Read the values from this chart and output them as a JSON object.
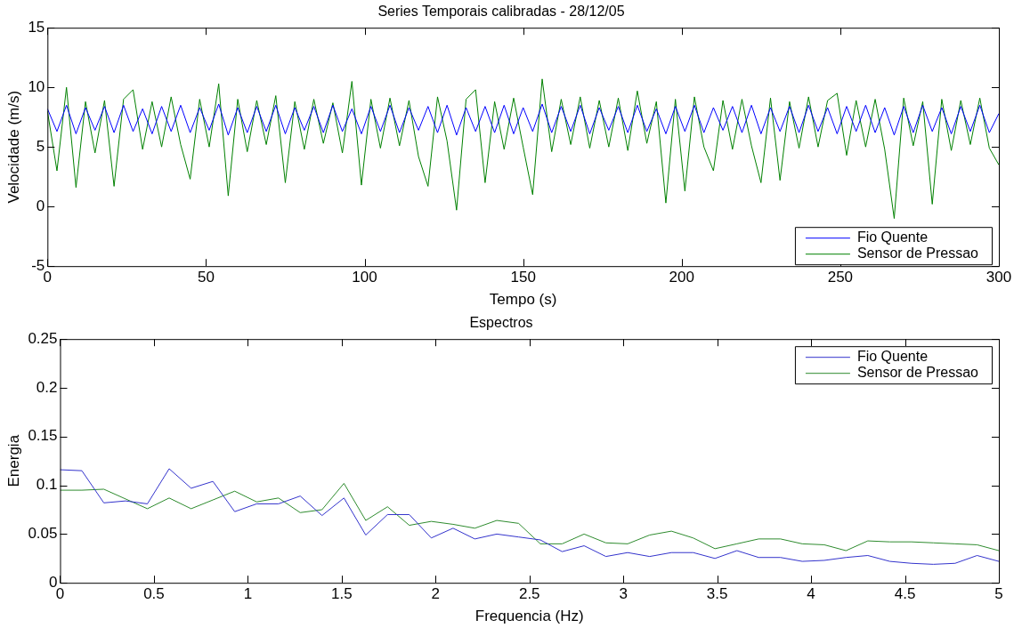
{
  "chart_data": [
    {
      "type": "line",
      "title": "Series Temporais calibradas - 28/12/05",
      "xlabel": "Tempo (s)",
      "ylabel": "Velocidade (m/s)",
      "x": [
        0,
        3,
        6,
        9,
        12,
        15,
        18,
        21,
        24,
        27,
        30,
        33,
        36,
        39,
        42,
        45,
        48,
        51,
        54,
        57,
        60,
        63,
        66,
        69,
        72,
        75,
        78,
        81,
        84,
        87,
        90,
        93,
        96,
        99,
        102,
        105,
        108,
        111,
        114,
        117,
        120,
        123,
        126,
        129,
        132,
        135,
        138,
        141,
        144,
        147,
        150,
        153,
        156,
        159,
        162,
        165,
        168,
        171,
        174,
        177,
        180,
        183,
        186,
        189,
        192,
        195,
        198,
        201,
        204,
        207,
        210,
        213,
        216,
        219,
        222,
        225,
        228,
        231,
        234,
        237,
        240,
        243,
        246,
        249,
        252,
        255,
        258,
        261,
        264,
        267,
        270,
        273,
        276,
        279,
        282,
        285,
        288,
        291,
        294,
        297,
        300
      ],
      "series": [
        {
          "name": "Fio Quente",
          "color": "#0000ff",
          "values": [
            8.2,
            6.3,
            8.5,
            6.1,
            8.3,
            6.4,
            8.4,
            6.2,
            8.5,
            6.3,
            8.2,
            6.1,
            8.4,
            6.3,
            8.5,
            6.2,
            8.3,
            6.4,
            8.6,
            6.0,
            8.3,
            6.2,
            8.4,
            6.3,
            8.5,
            6.1,
            8.3,
            6.4,
            8.4,
            6.2,
            8.5,
            6.3,
            8.2,
            6.1,
            8.4,
            6.3,
            8.5,
            6.2,
            8.3,
            6.4,
            8.4,
            6.2,
            8.5,
            6.0,
            8.3,
            6.3,
            8.4,
            6.2,
            8.5,
            6.1,
            8.3,
            6.3,
            8.6,
            6.2,
            8.4,
            6.3,
            8.5,
            6.1,
            8.3,
            6.4,
            8.4,
            6.2,
            8.5,
            6.3,
            8.2,
            6.1,
            8.4,
            6.3,
            8.5,
            6.2,
            8.3,
            6.4,
            8.4,
            6.2,
            8.5,
            6.1,
            8.3,
            6.3,
            8.4,
            6.2,
            8.5,
            6.3,
            8.3,
            6.1,
            8.4,
            6.3,
            8.5,
            6.2,
            8.3,
            6.0,
            8.4,
            6.2,
            8.5,
            6.3,
            8.3,
            6.1,
            8.4,
            6.3,
            8.5,
            6.2,
            7.8
          ]
        },
        {
          "name": "Sensor de Pressao",
          "color": "#008000",
          "values": [
            8.0,
            3.0,
            10.0,
            1.6,
            8.8,
            4.5,
            8.9,
            1.7,
            9.0,
            9.8,
            4.8,
            8.8,
            5.0,
            9.2,
            5.2,
            2.3,
            9.0,
            5.0,
            10.3,
            0.9,
            9.0,
            4.6,
            8.9,
            5.2,
            9.3,
            2.0,
            8.8,
            4.8,
            9.0,
            5.3,
            8.7,
            4.5,
            10.5,
            1.8,
            9.0,
            4.9,
            9.1,
            5.1,
            8.9,
            4.2,
            1.7,
            9.2,
            5.5,
            -0.3,
            9.0,
            9.8,
            2.0,
            8.8,
            4.8,
            9.1,
            5.0,
            1.0,
            10.7,
            4.6,
            9.0,
            5.2,
            9.2,
            4.9,
            8.9,
            5.0,
            9.1,
            4.7,
            9.7,
            5.3,
            8.8,
            0.3,
            9.0,
            1.3,
            9.2,
            5.0,
            3.0,
            8.9,
            4.8,
            9.0,
            5.1,
            2.0,
            9.1,
            2.2,
            8.8,
            4.9,
            9.2,
            5.0,
            8.9,
            9.5,
            4.3,
            8.9,
            5.0,
            9.0,
            4.8,
            -1.0,
            9.1,
            5.1,
            8.8,
            0.2,
            9.0,
            4.7,
            8.9,
            5.2,
            9.1,
            4.9,
            3.5
          ]
        }
      ],
      "xlim": [
        0,
        300
      ],
      "xticks": [
        0,
        50,
        100,
        150,
        200,
        250,
        300
      ],
      "ylim": [
        -5,
        15
      ],
      "yticks": [
        -5,
        0,
        5,
        10,
        15
      ],
      "grid": false,
      "legend": "bottom right"
    },
    {
      "type": "line",
      "title": "Espectros",
      "xlabel": "Frequencia (Hz)",
      "ylabel": "Energia",
      "x": [
        0,
        0.116,
        0.233,
        0.349,
        0.465,
        0.581,
        0.698,
        0.814,
        0.93,
        1.047,
        1.163,
        1.279,
        1.395,
        1.512,
        1.628,
        1.744,
        1.86,
        1.977,
        2.093,
        2.209,
        2.326,
        2.442,
        2.558,
        2.674,
        2.791,
        2.907,
        3.023,
        3.14,
        3.256,
        3.372,
        3.488,
        3.605,
        3.721,
        3.837,
        3.953,
        4.07,
        4.186,
        4.302,
        4.419,
        4.535,
        4.651,
        4.767,
        4.884,
        5.0
      ],
      "series": [
        {
          "name": "Fio Quente",
          "color": "#3333cc",
          "values": [
            0.116,
            0.115,
            0.082,
            0.084,
            0.081,
            0.117,
            0.097,
            0.104,
            0.073,
            0.081,
            0.081,
            0.089,
            0.069,
            0.087,
            0.049,
            0.07,
            0.07,
            0.046,
            0.056,
            0.045,
            0.05,
            0.047,
            0.044,
            0.032,
            0.038,
            0.027,
            0.031,
            0.027,
            0.031,
            0.031,
            0.025,
            0.033,
            0.026,
            0.026,
            0.022,
            0.023,
            0.026,
            0.028,
            0.022,
            0.02,
            0.019,
            0.02,
            0.028,
            0.022
          ]
        },
        {
          "name": "Sensor de Pressao",
          "color": "#2e8b2e",
          "values": [
            0.095,
            0.095,
            0.096,
            0.086,
            0.076,
            0.087,
            0.076,
            0.085,
            0.094,
            0.083,
            0.087,
            0.072,
            0.075,
            0.102,
            0.064,
            0.078,
            0.059,
            0.063,
            0.06,
            0.056,
            0.064,
            0.061,
            0.04,
            0.04,
            0.05,
            0.041,
            0.04,
            0.049,
            0.053,
            0.046,
            0.035,
            0.04,
            0.045,
            0.045,
            0.04,
            0.039,
            0.033,
            0.043,
            0.042,
            0.042,
            0.041,
            0.04,
            0.039,
            0.033
          ]
        }
      ],
      "xlim": [
        0,
        5
      ],
      "xticks": [
        0,
        0.5,
        1,
        1.5,
        2,
        2.5,
        3,
        3.5,
        4,
        4.5,
        5
      ],
      "ylim": [
        0,
        0.25
      ],
      "yticks": [
        0,
        0.05,
        0.1,
        0.15,
        0.2,
        0.25
      ],
      "grid": false,
      "legend": "top right"
    }
  ]
}
